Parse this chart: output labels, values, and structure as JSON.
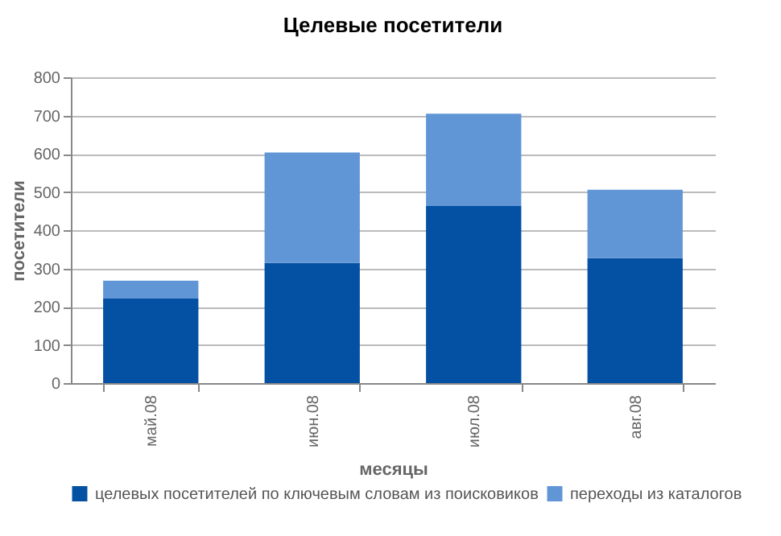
{
  "chart_data": {
    "type": "bar",
    "title": "Целевые посетители",
    "xlabel": "месяцы",
    "ylabel": "посетители",
    "categories": [
      "май.08",
      "июн.08",
      "июл.08",
      "авг.08"
    ],
    "stacked": true,
    "series": [
      {
        "name": "целевых посетителей по ключевым словам из поисковиков",
        "color": "#0450a3",
        "values": [
          221,
          314,
          463,
          327
        ]
      },
      {
        "name": "переходы из каталогов",
        "color": "#6196d6",
        "values": [
          47,
          289,
          242,
          179
        ]
      }
    ],
    "ylim": [
      0,
      800
    ],
    "yticks": [
      0,
      100,
      200,
      300,
      400,
      500,
      600,
      700,
      800
    ],
    "grid": "y",
    "legend": "bottom"
  }
}
